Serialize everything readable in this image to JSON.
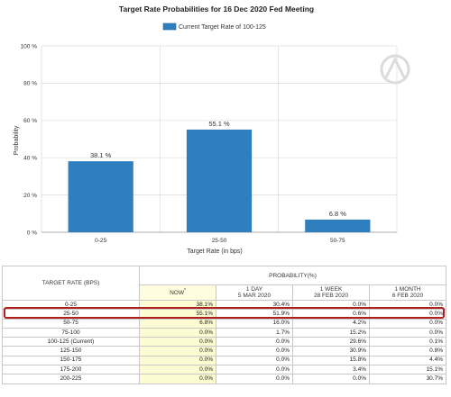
{
  "chart_data": {
    "type": "bar",
    "title": "Target Rate Probabilities for 16 Dec 2020 Fed Meeting",
    "legend": {
      "label": "Current Target Rate of 100-125",
      "placement": "top-center"
    },
    "xlabel": "Target Rate (in bps)",
    "ylabel": "Probability",
    "categories": [
      "0-25",
      "25-50",
      "50-75"
    ],
    "values": [
      38.1,
      55.1,
      6.8
    ],
    "data_labels": [
      "38.1 %",
      "55.1 %",
      "6.8 %"
    ],
    "ylim": [
      0,
      100
    ],
    "yticks": [
      0,
      20,
      40,
      60,
      80,
      100
    ],
    "ytick_labels": [
      "0 %",
      "20 %",
      "40 %",
      "60 %",
      "80 %",
      "100 %"
    ],
    "grid": true,
    "bar_color": "#2f7fbf"
  },
  "table": {
    "header_rate": "TARGET RATE (BPS)",
    "header_prob": "PROBABILITY(%)",
    "columns": [
      {
        "line1": "NOW",
        "marker": "*",
        "line2": ""
      },
      {
        "line1": "1 DAY",
        "line2": "5 MAR 2020"
      },
      {
        "line1": "1 WEEK",
        "line2": "28 FEB 2020"
      },
      {
        "line1": "1 MONTH",
        "line2": "6 FEB 2020"
      }
    ],
    "rows": [
      {
        "rate": "0-25",
        "now": "38.1%",
        "day1": "30.4%",
        "week1": "0.0%",
        "month1": "0.0%"
      },
      {
        "rate": "25-50",
        "now": "55.1%",
        "day1": "51.9%",
        "week1": "0.6%",
        "month1": "0.0%"
      },
      {
        "rate": "50-75",
        "now": "6.8%",
        "day1": "16.0%",
        "week1": "4.2%",
        "month1": "0.0%"
      },
      {
        "rate": "75-100",
        "now": "0.0%",
        "day1": "1.7%",
        "week1": "15.2%",
        "month1": "0.0%"
      },
      {
        "rate": "100-125 (Current)",
        "now": "0.0%",
        "day1": "0.0%",
        "week1": "29.6%",
        "month1": "0.1%"
      },
      {
        "rate": "125-150",
        "now": "0.0%",
        "day1": "0.0%",
        "week1": "30.9%",
        "month1": "0.8%"
      },
      {
        "rate": "150-175",
        "now": "0.0%",
        "day1": "0.0%",
        "week1": "15.8%",
        "month1": "4.4%"
      },
      {
        "rate": "175-200",
        "now": "0.0%",
        "day1": "0.0%",
        "week1": "3.4%",
        "month1": "15.1%"
      },
      {
        "rate": "200-225",
        "now": "0.0%",
        "day1": "0.0%",
        "week1": "0.0%",
        "month1": "30.7%"
      }
    ],
    "highlighted_row": 1,
    "highlight_color": "#b0201c"
  }
}
